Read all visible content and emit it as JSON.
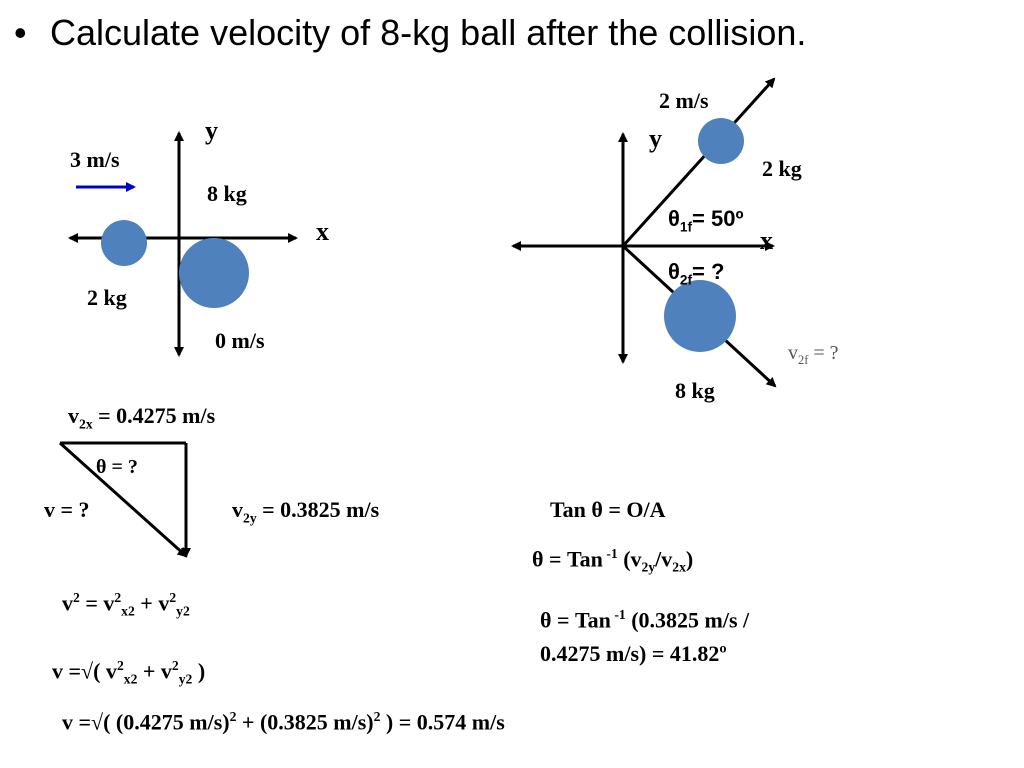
{
  "title": "Calculate velocity of 8-kg ball after the collision.",
  "colors": {
    "ball": "#4f81bd",
    "arrow_blue": "#0000cc"
  },
  "before": {
    "v_label": "3 m/s",
    "y_label": "y",
    "x_label": "x",
    "m8_label": "8 kg",
    "m2_label": "2 kg",
    "v8_label": "0 m/s"
  },
  "after": {
    "v1_label": "2 m/s",
    "y_label": "y",
    "x_label": "x",
    "m2_label": "2 kg",
    "theta1_sym": "θ",
    "theta1_sub": "1f",
    "theta1_val": "= 50º",
    "theta2_sym": "θ",
    "theta2_sub": "2f",
    "theta2_val": "= ?",
    "v2f_main": "v",
    "v2f_sub": "2f",
    "v2f_val": " = ?",
    "m8_label": "8 kg"
  },
  "triangle": {
    "v2x_main": "v",
    "v2x_sub": "2x",
    "v2x_val": " = 0.4275 m/s",
    "theta_label": "θ = ?",
    "v_label": "v =  ?",
    "v2y_main": "v",
    "v2y_sub": "2y",
    "v2y_val": " =  0.3825 m/s"
  },
  "equations": {
    "eq1_a": "v",
    "eq1_sup1": "2",
    "eq1_b": " = v",
    "eq1_sup2": "2",
    "eq1_sub2": "x2",
    "eq1_c": " + v",
    "eq1_sup3": "2",
    "eq1_sub3": "y2",
    "eq2_a": "v =√( v",
    "eq2_sup1": "2",
    "eq2_sub1": "x2",
    "eq2_b": " + v",
    "eq2_sup2": "2",
    "eq2_sub2": "y2",
    "eq2_c": " )",
    "eq3_a": "v =√( (0.4275 m/s)",
    "eq3_sup1": "2",
    "eq3_b": " + (0.3825 m/s)",
    "eq3_sup2": "2",
    "eq3_c": " ) = 0.574 m/s",
    "tan_line": "Tan θ = O/A",
    "inv_a": "θ = Tan",
    "inv_sup": " -1",
    "inv_b": " (v",
    "inv_sub1": "2y",
    "inv_c": "/v",
    "inv_sub2": "2x",
    "inv_d": ")",
    "res_a": "θ = Tan",
    "res_sup": " -1",
    "res_b": " (0.3825 m/s /",
    "res_line2": "0.4275 m/s) = 41.82º"
  }
}
